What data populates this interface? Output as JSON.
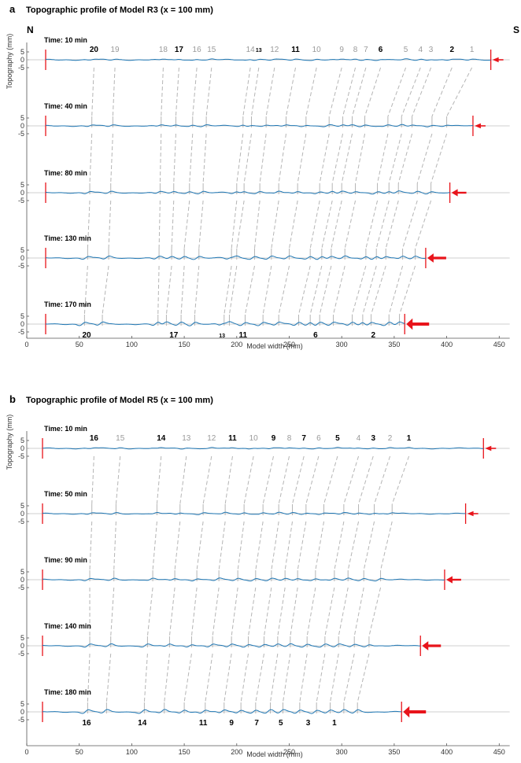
{
  "colors": {
    "profile": "#1f77b4",
    "fault_dark": "#000000",
    "fault_gray": "#9a9a9a",
    "link": "#b5b5b5",
    "zero_line": "#bfbfbf",
    "red": "#e8141b",
    "axis": "#555555"
  },
  "chart_data": [
    {
      "type": "line",
      "panel_letter": "a",
      "title": "Topographic profile of Model R3 (x = 100 mm)",
      "side_left": "N",
      "side_right": "S",
      "xlabel": "Model width (mm)",
      "ylabel": "Topography (mm)",
      "xlim": [
        0,
        460
      ],
      "ylim": [
        -5,
        5
      ],
      "x_ticks": [
        "0",
        "50",
        "100",
        "150",
        "200",
        "250",
        "300",
        "350",
        "400",
        "450"
      ],
      "y_ticks": [
        "5",
        "0",
        "-5"
      ],
      "series": [
        {
          "time": "Time: 10 min",
          "left_x": 18,
          "right_x": 442,
          "arrow_size": 1
        },
        {
          "time": "Time: 40 min",
          "left_x": 18,
          "right_x": 425,
          "arrow_size": 1
        },
        {
          "time": "Time: 80 min",
          "left_x": 18,
          "right_x": 403,
          "arrow_size": 2
        },
        {
          "time": "Time: 130 min",
          "left_x": 18,
          "right_x": 380,
          "arrow_size": 3
        },
        {
          "time": "Time: 170 min",
          "left_x": 18,
          "right_x": 360,
          "arrow_size": 4
        }
      ],
      "fault_labels_top": [
        {
          "text": "20",
          "x": 64,
          "style": "bold"
        },
        {
          "text": "19",
          "x": 84,
          "style": "gray"
        },
        {
          "text": "18",
          "x": 130,
          "style": "gray"
        },
        {
          "text": "17",
          "x": 145,
          "style": "bold"
        },
        {
          "text": "16",
          "x": 162,
          "style": "gray"
        },
        {
          "text": "15",
          "x": 176,
          "style": "gray"
        },
        {
          "text": "14",
          "x": 213,
          "style": "gray"
        },
        {
          "text": "13",
          "x": 221,
          "style": "small"
        },
        {
          "text": "12",
          "x": 236,
          "style": "gray"
        },
        {
          "text": "11",
          "x": 256,
          "style": "bold"
        },
        {
          "text": "10",
          "x": 276,
          "style": "gray"
        },
        {
          "text": "9",
          "x": 300,
          "style": "gray"
        },
        {
          "text": "8",
          "x": 313,
          "style": "gray"
        },
        {
          "text": "7",
          "x": 323,
          "style": "gray"
        },
        {
          "text": "6",
          "x": 337,
          "style": "bold"
        },
        {
          "text": "5",
          "x": 361,
          "style": "gray"
        },
        {
          "text": "4",
          "x": 375,
          "style": "gray"
        },
        {
          "text": "3",
          "x": 385,
          "style": "gray"
        },
        {
          "text": "2",
          "x": 405,
          "style": "bold"
        },
        {
          "text": "1",
          "x": 424,
          "style": "gray"
        }
      ],
      "fault_labels_bottom": [
        {
          "text": "20",
          "x": 57,
          "style": "bold"
        },
        {
          "text": "17",
          "x": 140,
          "style": "bold"
        },
        {
          "text": "13",
          "x": 186,
          "style": "small"
        },
        {
          "text": "11",
          "x": 206,
          "style": "bold"
        },
        {
          "text": "6",
          "x": 275,
          "style": "bold"
        },
        {
          "text": "2",
          "x": 330,
          "style": "bold"
        }
      ],
      "fault_tracks": [
        [
          64,
          62,
          60,
          58,
          55
        ],
        [
          84,
          82,
          80,
          78,
          72
        ],
        [
          130,
          128,
          127,
          126,
          125
        ],
        [
          145,
          142,
          140,
          138,
          133
        ],
        [
          162,
          158,
          155,
          150,
          147
        ],
        [
          176,
          171,
          168,
          164,
          160
        ],
        [
          213,
          206,
          200,
          195,
          188
        ],
        [
          221,
          214,
          207,
          200,
          193
        ],
        [
          236,
          228,
          222,
          217,
          208
        ],
        [
          256,
          247,
          240,
          233,
          225
        ],
        [
          276,
          266,
          258,
          250,
          240
        ],
        [
          300,
          288,
          279,
          270,
          259
        ],
        [
          313,
          301,
          291,
          281,
          270
        ],
        [
          323,
          310,
          300,
          290,
          279
        ],
        [
          337,
          322,
          313,
          303,
          292
        ],
        [
          361,
          344,
          334,
          323,
          310
        ],
        [
          375,
          357,
          345,
          333,
          320
        ],
        [
          385,
          367,
          354,
          342,
          328
        ],
        [
          405,
          386,
          372,
          358,
          345
        ],
        [
          424,
          400,
          385,
          370,
          355
        ]
      ]
    },
    {
      "type": "line",
      "panel_letter": "b",
      "title": "Topographic profile of Model R5 (x = 100 mm)",
      "side_left": "",
      "side_right": "",
      "xlabel": "Model width (mm)",
      "ylabel": "Topography (mm)",
      "xlim": [
        0,
        460
      ],
      "ylim": [
        -5,
        5
      ],
      "x_ticks": [
        "0",
        "50",
        "100",
        "150",
        "200",
        "250",
        "300",
        "350",
        "400",
        "450"
      ],
      "y_ticks": [
        "5",
        "0",
        "-5"
      ],
      "series": [
        {
          "time": "Time: 10 min",
          "left_x": 15,
          "right_x": 435,
          "arrow_size": 1
        },
        {
          "time": "Time: 50 min",
          "left_x": 15,
          "right_x": 418,
          "arrow_size": 1
        },
        {
          "time": "Time: 90 min",
          "left_x": 15,
          "right_x": 398,
          "arrow_size": 2
        },
        {
          "time": "Time: 140 min",
          "left_x": 15,
          "right_x": 375,
          "arrow_size": 3
        },
        {
          "time": "Time: 180 min",
          "left_x": 15,
          "right_x": 357,
          "arrow_size": 4
        }
      ],
      "fault_labels_top": [
        {
          "text": "16",
          "x": 64,
          "style": "bold"
        },
        {
          "text": "15",
          "x": 89,
          "style": "gray"
        },
        {
          "text": "14",
          "x": 128,
          "style": "bold"
        },
        {
          "text": "13",
          "x": 152,
          "style": "gray"
        },
        {
          "text": "12",
          "x": 176,
          "style": "gray"
        },
        {
          "text": "11",
          "x": 196,
          "style": "bold"
        },
        {
          "text": "10",
          "x": 216,
          "style": "gray"
        },
        {
          "text": "9",
          "x": 235,
          "style": "bold"
        },
        {
          "text": "8",
          "x": 250,
          "style": "gray"
        },
        {
          "text": "7",
          "x": 264,
          "style": "bold"
        },
        {
          "text": "6",
          "x": 278,
          "style": "gray"
        },
        {
          "text": "5",
          "x": 296,
          "style": "bold"
        },
        {
          "text": "4",
          "x": 316,
          "style": "gray"
        },
        {
          "text": "3",
          "x": 330,
          "style": "bold"
        },
        {
          "text": "2",
          "x": 346,
          "style": "gray"
        },
        {
          "text": "1",
          "x": 364,
          "style": "bold"
        }
      ],
      "fault_labels_bottom": [
        {
          "text": "16",
          "x": 57,
          "style": "bold"
        },
        {
          "text": "14",
          "x": 110,
          "style": "bold"
        },
        {
          "text": "11",
          "x": 168,
          "style": "bold"
        },
        {
          "text": "9",
          "x": 195,
          "style": "bold"
        },
        {
          "text": "7",
          "x": 219,
          "style": "bold"
        },
        {
          "text": "5",
          "x": 242,
          "style": "bold"
        },
        {
          "text": "3",
          "x": 268,
          "style": "bold"
        },
        {
          "text": "1",
          "x": 293,
          "style": "bold"
        }
      ],
      "fault_tracks": [
        [
          64,
          62,
          60,
          60,
          58
        ],
        [
          89,
          85,
          83,
          80,
          76
        ],
        [
          128,
          124,
          120,
          115,
          112
        ],
        [
          152,
          146,
          141,
          136,
          131
        ],
        [
          176,
          168,
          162,
          157,
          150
        ],
        [
          196,
          189,
          183,
          177,
          170
        ],
        [
          216,
          207,
          201,
          195,
          188
        ],
        [
          235,
          225,
          218,
          211,
          204
        ],
        [
          250,
          240,
          233,
          226,
          218
        ],
        [
          264,
          253,
          246,
          239,
          232
        ],
        [
          278,
          266,
          258,
          251,
          244
        ],
        [
          296,
          283,
          275,
          267,
          260
        ],
        [
          316,
          302,
          293,
          284,
          276
        ],
        [
          330,
          316,
          306,
          297,
          289
        ],
        [
          346,
          331,
          321,
          312,
          302
        ],
        [
          364,
          348,
          337,
          326,
          315
        ]
      ]
    }
  ]
}
